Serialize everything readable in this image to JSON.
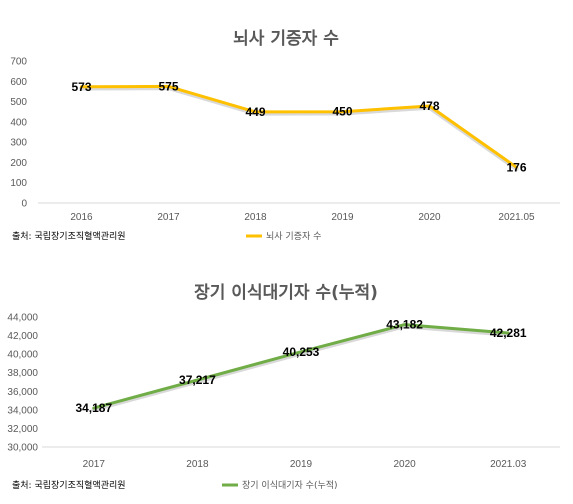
{
  "chart_data": [
    {
      "type": "line",
      "title": "뇌사 기증자 수",
      "categories": [
        "2016",
        "2017",
        "2018",
        "2019",
        "2020",
        "2021.05"
      ],
      "series": [
        {
          "name": "뇌사 기증자 수",
          "values": [
            573,
            575,
            449,
            450,
            478,
            176
          ]
        }
      ],
      "data_labels": [
        "573",
        "575",
        "449",
        "450",
        "478",
        "176"
      ],
      "ylim": [
        0,
        700
      ],
      "yticks": [
        "0",
        "100",
        "200",
        "300",
        "400",
        "500",
        "600",
        "700"
      ],
      "source": "출처: 국립장기조직혈액관리원",
      "line_color": "#FFC000",
      "grid": false,
      "legend": "bottom"
    },
    {
      "type": "line",
      "title": "장기 이식대기자 수(누적)",
      "categories": [
        "2017",
        "2018",
        "2019",
        "2020",
        "2021.03"
      ],
      "series": [
        {
          "name": "장기 이식대기자 수(누적)",
          "values": [
            34187,
            37217,
            40253,
            43182,
            42281
          ]
        }
      ],
      "data_labels": [
        "34,187",
        "37,217",
        "40,253",
        "43,182",
        "42,281"
      ],
      "ylim": [
        30000,
        44000
      ],
      "yticks": [
        "30,000",
        "32,000",
        "34,000",
        "36,000",
        "38,000",
        "40,000",
        "42,000",
        "44,000"
      ],
      "source": "출처: 국립장기조직혈액관리원",
      "line_color": "#70AD47",
      "grid": false,
      "legend": "bottom"
    }
  ]
}
